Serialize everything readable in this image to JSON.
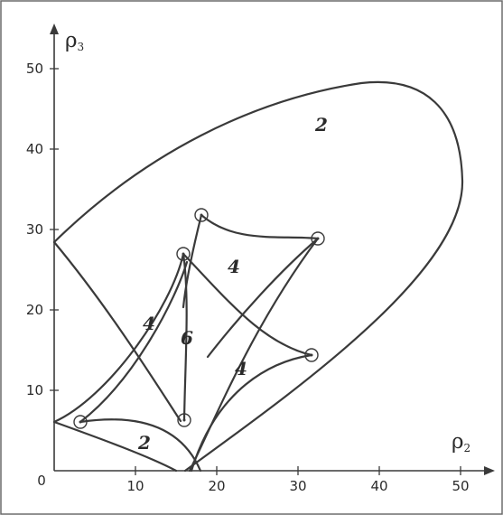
{
  "axes": {
    "x_label_main": "ρ",
    "x_label_sub": "2",
    "y_label_main": "ρ",
    "y_label_sub": "3",
    "x_ticks": [
      "10",
      "20",
      "30",
      "40",
      "50"
    ],
    "y_ticks": [
      "10",
      "20",
      "30",
      "40",
      "50"
    ],
    "origin_label": "0"
  },
  "regions": {
    "outer": "2",
    "upper_right": "4",
    "left": "4",
    "center": "6",
    "lower_right": "4",
    "bottom": "2"
  }
}
